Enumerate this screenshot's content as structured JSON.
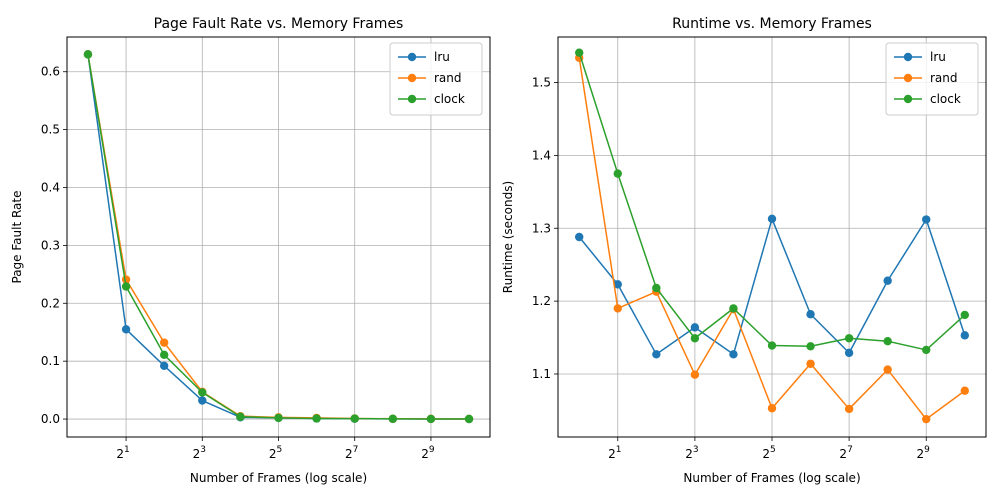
{
  "chart_data": [
    {
      "type": "line",
      "title": "Page Fault Rate vs. Memory Frames",
      "xlabel": "Number of Frames (log scale)",
      "ylabel": "Page Fault Rate",
      "xscale": "log2",
      "x": [
        1,
        2,
        4,
        8,
        16,
        32,
        64,
        128,
        256,
        512,
        1024
      ],
      "xticks": [
        2,
        8,
        32,
        128,
        512
      ],
      "xtick_labels": [
        {
          "base": "2",
          "exp": "1"
        },
        {
          "base": "2",
          "exp": "3"
        },
        {
          "base": "2",
          "exp": "5"
        },
        {
          "base": "2",
          "exp": "7"
        },
        {
          "base": "2",
          "exp": "9"
        }
      ],
      "yticks": [
        0.0,
        0.1,
        0.2,
        0.3,
        0.4,
        0.5,
        0.6
      ],
      "ytick_labels": [
        "0.0",
        "0.1",
        "0.2",
        "0.3",
        "0.4",
        "0.5",
        "0.6"
      ],
      "ylim": [
        -0.031,
        0.66
      ],
      "grid": true,
      "legend_position": "upper-right",
      "series": [
        {
          "name": "lru",
          "color": "#1f77b4",
          "values": [
            0.63,
            0.155,
            0.092,
            0.032,
            0.003,
            0.002,
            0.001,
            0.0005,
            0.0003,
            0.0002,
            0.0001
          ]
        },
        {
          "name": "rand",
          "color": "#ff7f0e",
          "values": [
            0.63,
            0.241,
            0.132,
            0.047,
            0.005,
            0.003,
            0.002,
            0.001,
            0.0005,
            0.0003,
            0.0002
          ]
        },
        {
          "name": "clock",
          "color": "#2ca02c",
          "values": [
            0.63,
            0.229,
            0.111,
            0.046,
            0.004,
            0.002,
            0.001,
            0.0008,
            0.0004,
            0.0002,
            0.0001
          ]
        }
      ]
    },
    {
      "type": "line",
      "title": "Runtime vs. Memory Frames",
      "xlabel": "Number of Frames (log scale)",
      "ylabel": "Runtime (seconds)",
      "xscale": "log2",
      "x": [
        1,
        2,
        4,
        8,
        16,
        32,
        64,
        128,
        256,
        512,
        1024
      ],
      "xticks": [
        2,
        8,
        32,
        128,
        512
      ],
      "xtick_labels": [
        {
          "base": "2",
          "exp": "1"
        },
        {
          "base": "2",
          "exp": "3"
        },
        {
          "base": "2",
          "exp": "5"
        },
        {
          "base": "2",
          "exp": "7"
        },
        {
          "base": "2",
          "exp": "9"
        }
      ],
      "yticks": [
        1.1,
        1.2,
        1.3,
        1.4,
        1.5
      ],
      "ytick_labels": [
        "1.1",
        "1.2",
        "1.3",
        "1.4",
        "1.5"
      ],
      "ylim": [
        1.0135,
        1.5625
      ],
      "grid": true,
      "legend_position": "upper-right",
      "series": [
        {
          "name": "lru",
          "color": "#1f77b4",
          "values": [
            1.288,
            1.223,
            1.127,
            1.164,
            1.127,
            1.313,
            1.182,
            1.129,
            1.228,
            1.312,
            1.153
          ]
        },
        {
          "name": "rand",
          "color": "#ff7f0e",
          "values": [
            1.534,
            1.19,
            1.213,
            1.099,
            1.189,
            1.053,
            1.114,
            1.052,
            1.106,
            1.038,
            1.077
          ]
        },
        {
          "name": "clock",
          "color": "#2ca02c",
          "values": [
            1.541,
            1.375,
            1.218,
            1.149,
            1.19,
            1.139,
            1.138,
            1.149,
            1.145,
            1.133,
            1.181
          ]
        }
      ]
    }
  ]
}
